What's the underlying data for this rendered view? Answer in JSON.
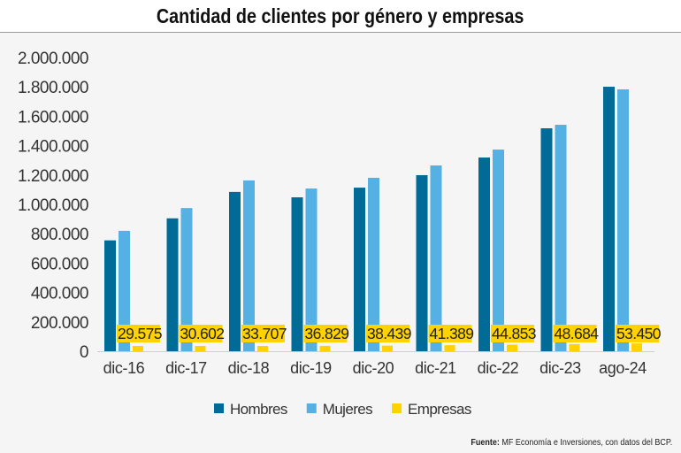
{
  "chart_data": {
    "type": "bar",
    "title": "Cantidad de clientes por género y empresas",
    "categories": [
      "dic-16",
      "dic-17",
      "dic-18",
      "dic-19",
      "dic-20",
      "dic-21",
      "dic-22",
      "dic-23",
      "ago-24"
    ],
    "series": [
      {
        "name": "Hombres",
        "color": "#006b96",
        "values": [
          755000,
          905000,
          1085000,
          1048000,
          1114000,
          1199000,
          1319000,
          1518000,
          1801000
        ]
      },
      {
        "name": "Mujeres",
        "color": "#55b0e3",
        "values": [
          820000,
          975000,
          1163000,
          1108000,
          1181000,
          1265000,
          1373000,
          1542000,
          1783000
        ]
      },
      {
        "name": "Empresas",
        "color": "#ffd200",
        "values": [
          29575,
          30602,
          33707,
          36829,
          38439,
          41389,
          44853,
          48684,
          53450
        ]
      }
    ],
    "data_labels": [
      "29.575",
      "30.602",
      "33.707",
      "36.829",
      "38.439",
      "41.389",
      "44.853",
      "48.684",
      "53.450"
    ],
    "yticks": [
      "0",
      "200.000",
      "400.000",
      "600.000",
      "800.000",
      "1.000.000",
      "1.200.000",
      "1.400.000",
      "1.600.000",
      "1.800.000",
      "2.000.000"
    ],
    "ylim": [
      0,
      2000000
    ],
    "grid": false,
    "legend": "bottom"
  },
  "source": {
    "label": "Fuente:",
    "text": " MF Economía e Inversiones, con datos del BCP."
  }
}
